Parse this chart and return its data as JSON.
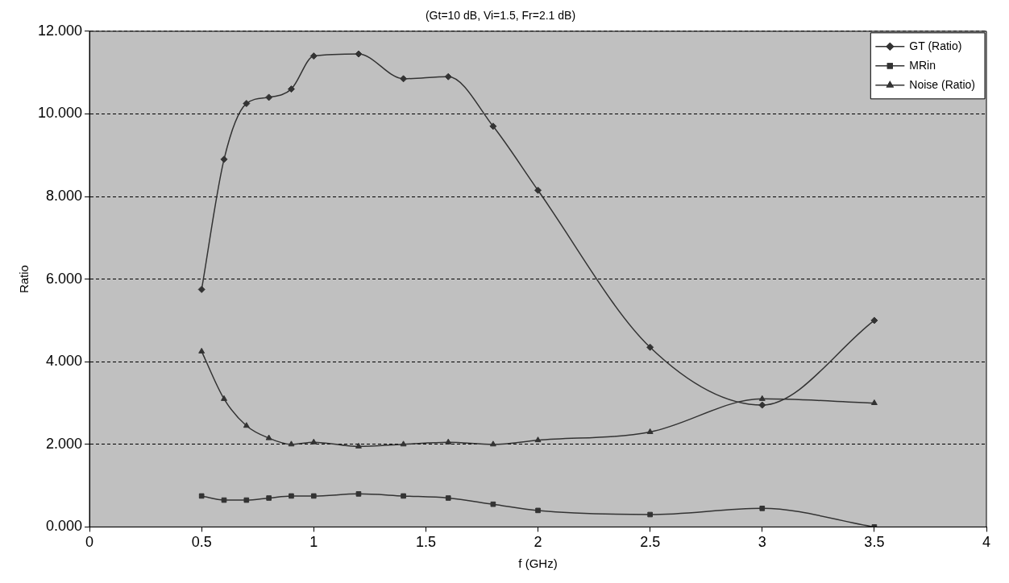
{
  "chart_data": {
    "type": "line",
    "title": "(Gt=10 dB, Vi=1.5, Fr=2.1 dB)",
    "xlabel": "f (GHz)",
    "ylabel": "Ratio",
    "x": [
      0.5,
      0.6,
      0.7,
      0.8,
      0.9,
      1,
      1.2,
      1.4,
      1.6,
      1.8,
      2,
      2.5,
      3,
      3.5
    ],
    "series": [
      {
        "name": "GT (Ratio)",
        "color": "#333333",
        "marker": "diamond",
        "values": [
          5.75,
          8.9,
          10.25,
          10.4,
          10.6,
          11.4,
          11.45,
          10.85,
          10.9,
          9.7,
          8.15,
          4.35,
          2.95,
          5.0
        ]
      },
      {
        "name": "MRin",
        "color": "#333333",
        "marker": "square",
        "values": [
          0.75,
          0.65,
          0.65,
          0.7,
          0.75,
          0.75,
          0.8,
          0.75,
          0.7,
          0.55,
          0.4,
          0.3,
          0.45,
          0.0
        ]
      },
      {
        "name": "Noise (Ratio)",
        "color": "#333333",
        "marker": "triangle",
        "values": [
          4.25,
          3.1,
          2.45,
          2.15,
          2.0,
          2.05,
          1.95,
          2.0,
          2.05,
          2.0,
          2.1,
          2.3,
          3.1,
          3.0
        ]
      }
    ],
    "xlim": [
      0,
      4
    ],
    "xticks": [
      0,
      0.5,
      1,
      1.5,
      2,
      2.5,
      3,
      3.5,
      4
    ],
    "ylim": [
      0,
      12
    ],
    "yticks": [
      {
        "value": 0,
        "label": "0.000"
      },
      {
        "value": 2,
        "label": "2.000"
      },
      {
        "value": 4,
        "label": "4.000"
      },
      {
        "value": 6,
        "label": "6.000"
      },
      {
        "value": 8,
        "label": "8.000"
      },
      {
        "value": 10,
        "label": "10.000"
      },
      {
        "value": 12,
        "label": "12.000"
      }
    ],
    "grid": "y",
    "legend": "top right",
    "line_style": "solid"
  }
}
